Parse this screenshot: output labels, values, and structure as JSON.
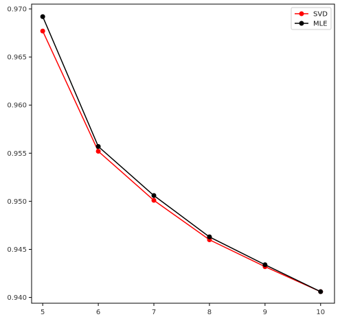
{
  "chart_data": {
    "type": "line",
    "x": [
      5,
      6,
      7,
      8,
      9,
      10
    ],
    "series": [
      {
        "name": "SVD",
        "color": "#ff0000",
        "values": [
          0.9677,
          0.9552,
          0.9501,
          0.946,
          0.9432,
          0.9406
        ]
      },
      {
        "name": "MLE",
        "color": "#000000",
        "values": [
          0.9692,
          0.9557,
          0.9506,
          0.9463,
          0.9434,
          0.9406
        ]
      }
    ],
    "title": "",
    "xlabel": "",
    "ylabel": "",
    "xlim": [
      4.8,
      10.25
    ],
    "ylim": [
      0.9394,
      0.9705
    ],
    "xticks": [
      5,
      6,
      7,
      8,
      9,
      10
    ],
    "xtick_labels": [
      "5",
      "6",
      "7",
      "8",
      "9",
      "10"
    ],
    "yticks": [
      0.94,
      0.945,
      0.95,
      0.955,
      0.96,
      0.965,
      0.97
    ],
    "ytick_labels": [
      "0.940",
      "0.945",
      "0.950",
      "0.955",
      "0.960",
      "0.965",
      "0.970"
    ],
    "grid": false,
    "legend_position": "top-right",
    "marker": "circle"
  }
}
